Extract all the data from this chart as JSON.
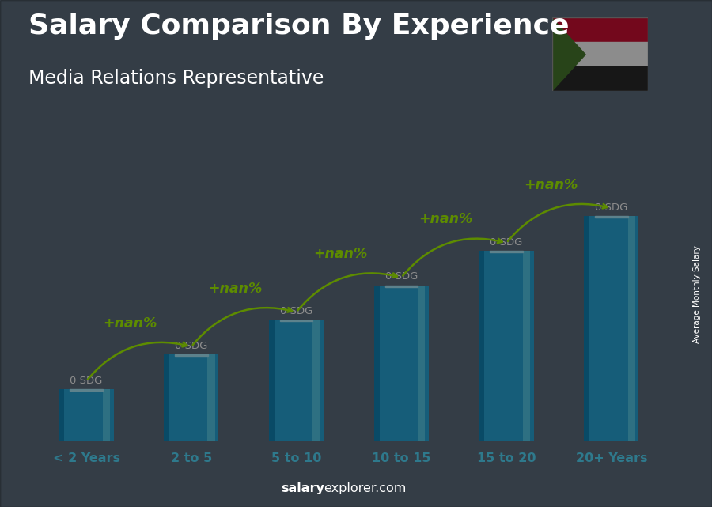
{
  "title": "Salary Comparison By Experience",
  "subtitle": "Media Relations Representative",
  "categories": [
    "< 2 Years",
    "2 to 5",
    "5 to 10",
    "10 to 15",
    "15 to 20",
    "20+ Years"
  ],
  "values": [
    1.5,
    2.5,
    3.5,
    4.5,
    5.5,
    6.5
  ],
  "bar_color_main": "#29aadd",
  "bar_color_light": "#55ccee",
  "bar_color_dark": "#1188bb",
  "bar_color_highlight": "#aaeeff",
  "value_labels": [
    "0 SDG",
    "0 SDG",
    "0 SDG",
    "0 SDG",
    "0 SDG",
    "0 SDG"
  ],
  "pct_labels": [
    "+nan%",
    "+nan%",
    "+nan%",
    "+nan%",
    "+nan%"
  ],
  "pct_color": "#aaff00",
  "title_color": "#ffffff",
  "subtitle_color": "#ffffff",
  "footer_salary": "salary",
  "footer_rest": "explorer.com",
  "side_label": "Average Monthly Salary",
  "ylim": [
    0,
    8.5
  ],
  "bg_color": "#607080",
  "title_fontsize": 26,
  "subtitle_fontsize": 17,
  "bar_width": 0.52,
  "flag_red": "#d21034",
  "flag_white": "#ffffff",
  "flag_black": "#2a2a2a",
  "flag_green": "#4a7c2f"
}
